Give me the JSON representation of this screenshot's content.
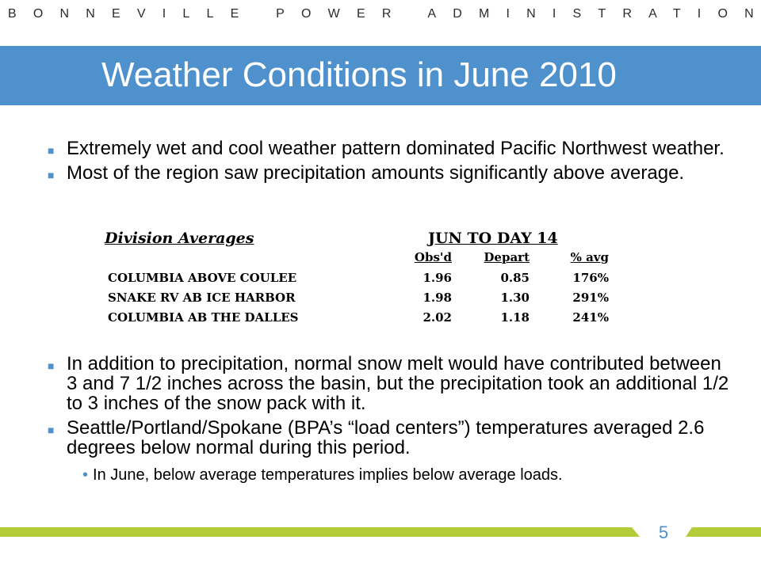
{
  "header": {
    "org": "BONNEVILLE POWER ADMINISTRATION",
    "title": "Weather Conditions in June 2010"
  },
  "bullets_top": [
    "Extremely wet and cool weather pattern dominated Pacific Northwest weather.",
    "Most of the region saw precipitation amounts significantly above average."
  ],
  "table": {
    "division_header": "Division Averages",
    "period_header": "JUN TO DAY 14",
    "columns": [
      "Obs'd",
      "Depart",
      "% avg"
    ],
    "rows": [
      {
        "name": "COLUMBIA ABOVE COULEE",
        "obsd": "1.96",
        "depart": "0.85",
        "pct": "176%"
      },
      {
        "name": "SNAKE RV AB ICE HARBOR",
        "obsd": "1.98",
        "depart": "1.30",
        "pct": "291%"
      },
      {
        "name": "COLUMBIA AB THE DALLES",
        "obsd": "2.02",
        "depart": "1.18",
        "pct": "241%"
      }
    ]
  },
  "bullets_bottom": [
    "In addition to precipitation, normal snow melt would have contributed between 3 and 7 1/2 inches across the basin, but the precipitation took an additional 1/2 to 3 inches of the snow pack with it.",
    "Seattle/Portland/Spokane (BPA’s “load centers”) temperatures averaged 2.6 degrees below normal during this period."
  ],
  "sub_bullet": "In June, below average temperatures implies below average loads.",
  "page_number": "5",
  "colors": {
    "accent": "#4f91cd",
    "footer_green": "#b5cc3a"
  }
}
